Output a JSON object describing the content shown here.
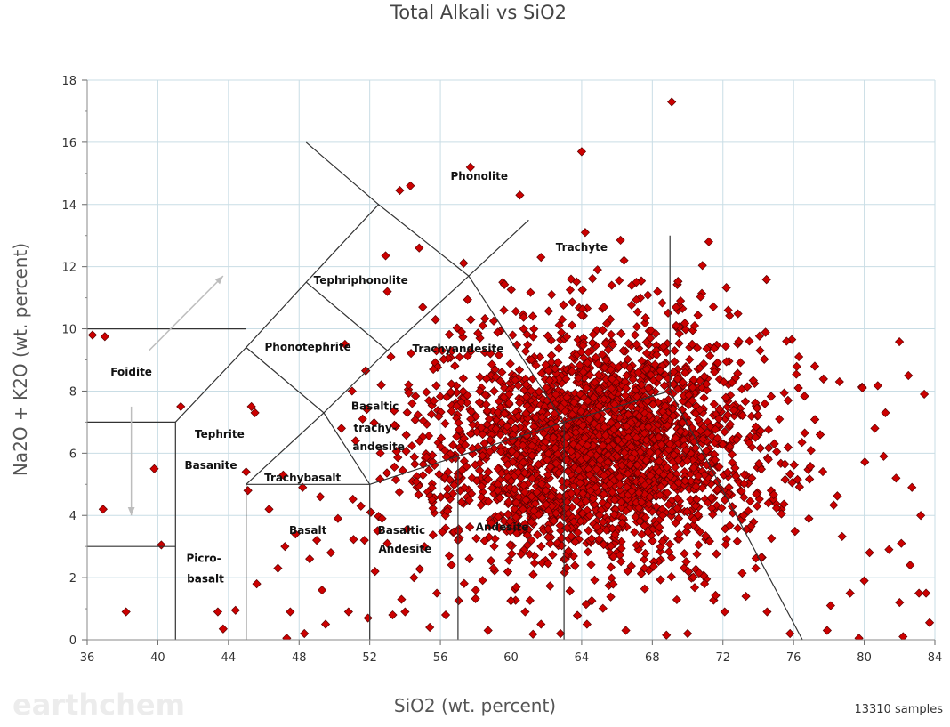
{
  "watermark": "earthchem",
  "sample_count": "13310 samples",
  "colors": {
    "point_fill": "#cc0000",
    "point_stroke": "#5a0000",
    "grid": "#c9dde5",
    "boundary": "#333333",
    "arrow": "#bdbdbd"
  },
  "chart_data": {
    "type": "scatter",
    "title": "Total Alkali vs SiO2",
    "xlabel": "SiO2 (wt. percent)",
    "ylabel": "Na2O + K2O (wt. percent)",
    "xlim": [
      36,
      84
    ],
    "ylim": [
      0,
      18
    ],
    "xticks": [
      36,
      40,
      44,
      48,
      52,
      56,
      60,
      64,
      68,
      72,
      76,
      80,
      84
    ],
    "yticks": [
      0,
      2,
      4,
      6,
      8,
      10,
      12,
      14,
      16,
      18
    ],
    "grid": true,
    "legend": "none",
    "regions": [
      {
        "label": "Foidite",
        "x": 38.5,
        "y": 8.5
      },
      {
        "label": "Phonolite",
        "x": 58.2,
        "y": 14.8
      },
      {
        "label": "Tephriphonolite",
        "x": 51.5,
        "y": 11.45
      },
      {
        "label": "Trachyte",
        "x": 64.0,
        "y": 12.5
      },
      {
        "label": "Phonotephrite",
        "x": 48.5,
        "y": 9.3
      },
      {
        "label": "Trachyandesite",
        "x": 57.0,
        "y": 9.25
      },
      {
        "label": "Basaltic",
        "x": 52.3,
        "y": 7.4
      },
      {
        "label": "trachy-",
        "x": 52.3,
        "y": 6.7
      },
      {
        "label": "andesite",
        "x": 52.5,
        "y": 6.1
      },
      {
        "label": "Tephrite",
        "x": 43.5,
        "y": 6.5
      },
      {
        "label": "Basanite",
        "x": 43.0,
        "y": 5.5
      },
      {
        "label": "Trachybasalt",
        "x": 48.2,
        "y": 5.1
      },
      {
        "label": "Basalt",
        "x": 48.5,
        "y": 3.4
      },
      {
        "label": "Basaltic",
        "x": 53.8,
        "y": 3.4
      },
      {
        "label": "Andesite",
        "x": 54.0,
        "y": 2.8
      },
      {
        "label": "Andesite",
        "x": 59.5,
        "y": 3.5
      },
      {
        "label": "Picro-",
        "x": 42.6,
        "y": 2.5
      },
      {
        "label": "basalt",
        "x": 42.7,
        "y": 1.85
      }
    ],
    "boundaries": [
      [
        [
          41,
          0
        ],
        [
          41,
          7
        ],
        [
          45,
          9.4
        ],
        [
          48.4,
          11.5
        ],
        [
          52.5,
          14
        ],
        [
          57.6,
          11.7
        ],
        [
          63,
          7
        ],
        [
          69,
          8
        ],
        [
          76.5,
          0
        ]
      ],
      [
        [
          45,
          0
        ],
        [
          45,
          5
        ],
        [
          52,
          5
        ]
      ],
      [
        [
          52,
          0
        ],
        [
          52,
          5
        ]
      ],
      [
        [
          57,
          0
        ],
        [
          57,
          5.9
        ]
      ],
      [
        [
          63,
          0
        ],
        [
          63,
          7
        ]
      ],
      [
        [
          45,
          5
        ],
        [
          49.4,
          7.3
        ],
        [
          53,
          9.3
        ],
        [
          57.6,
          11.7
        ],
        [
          61,
          13.5
        ]
      ],
      [
        [
          45,
          9.4
        ],
        [
          49.4,
          7.3
        ],
        [
          52,
          5
        ],
        [
          57,
          5.9
        ],
        [
          63,
          7
        ]
      ],
      [
        [
          48.4,
          11.5
        ],
        [
          53,
          9.3
        ]
      ],
      [
        [
          52.5,
          14
        ],
        [
          48.4,
          16
        ]
      ],
      [
        [
          69,
          8
        ],
        [
          69,
          13
        ]
      ],
      [
        [
          36,
          10
        ],
        [
          45,
          10
        ]
      ],
      [
        [
          36,
          7
        ],
        [
          41,
          7
        ]
      ],
      [
        [
          36,
          3
        ],
        [
          41,
          3
        ]
      ]
    ],
    "arrows": [
      {
        "from": [
          39.5,
          9.3
        ],
        "to": [
          43.7,
          11.7
        ]
      },
      {
        "from": [
          38.5,
          7.5
        ],
        "to": [
          38.5,
          4.0
        ]
      }
    ],
    "points_sparse": [
      [
        36.3,
        9.8
      ],
      [
        37.0,
        9.75
      ],
      [
        38.2,
        0.9
      ],
      [
        36.9,
        4.2
      ],
      [
        39.8,
        5.5
      ],
      [
        40.2,
        3.05
      ],
      [
        41.3,
        7.5
      ],
      [
        43.4,
        0.9
      ],
      [
        43.7,
        0.35
      ],
      [
        44.4,
        0.95
      ],
      [
        45.3,
        7.5
      ],
      [
        45.5,
        7.3
      ],
      [
        45.0,
        5.4
      ],
      [
        45.1,
        4.8
      ],
      [
        45.6,
        1.8
      ],
      [
        46.3,
        4.2
      ],
      [
        46.8,
        2.3
      ],
      [
        47.2,
        3.0
      ],
      [
        47.8,
        3.4
      ],
      [
        47.5,
        0.9
      ],
      [
        47.3,
        0.05
      ],
      [
        48.3,
        0.2
      ],
      [
        48.6,
        2.6
      ],
      [
        49.0,
        3.2
      ],
      [
        49.3,
        1.6
      ],
      [
        49.8,
        2.8
      ],
      [
        50.2,
        3.9
      ],
      [
        50.6,
        9.5
      ],
      [
        51.0,
        8.0
      ],
      [
        51.2,
        6.4
      ],
      [
        51.5,
        4.3
      ],
      [
        51.7,
        3.2
      ],
      [
        51.9,
        0.7
      ],
      [
        52.3,
        2.2
      ],
      [
        52.7,
        3.9
      ],
      [
        53.0,
        3.1
      ],
      [
        53.3,
        0.8
      ],
      [
        52.9,
        12.35
      ],
      [
        53.0,
        11.2
      ],
      [
        53.2,
        9.1
      ],
      [
        53.7,
        14.45
      ],
      [
        54.3,
        14.6
      ],
      [
        54.8,
        12.6
      ],
      [
        55.0,
        10.7
      ],
      [
        57.7,
        15.2
      ],
      [
        60.5,
        14.3
      ],
      [
        61.7,
        12.3
      ],
      [
        64.0,
        15.7
      ],
      [
        64.2,
        13.1
      ],
      [
        69.1,
        17.3
      ],
      [
        66.2,
        12.85
      ],
      [
        66.4,
        12.2
      ],
      [
        71.2,
        12.8
      ],
      [
        75.6,
        9.6
      ],
      [
        78.6,
        8.3
      ],
      [
        81.2,
        7.3
      ],
      [
        82.5,
        8.5
      ],
      [
        83.4,
        7.9
      ],
      [
        83.2,
        4.0
      ],
      [
        83.5,
        1.5
      ],
      [
        83.7,
        0.55
      ],
      [
        82.2,
        0.1
      ],
      [
        79.7,
        0.05
      ],
      [
        77.9,
        0.3
      ],
      [
        75.8,
        0.2
      ],
      [
        56.3,
        0.8
      ],
      [
        55.4,
        0.4
      ],
      [
        54.0,
        0.9
      ],
      [
        58.7,
        0.3
      ],
      [
        60.8,
        0.9
      ],
      [
        61.7,
        0.5
      ],
      [
        62.8,
        0.2
      ],
      [
        64.3,
        0.5
      ],
      [
        66.5,
        0.3
      ],
      [
        68.8,
        0.15
      ],
      [
        70.0,
        0.2
      ],
      [
        72.1,
        0.9
      ],
      [
        73.3,
        1.4
      ],
      [
        74.5,
        0.9
      ],
      [
        57.2,
        9.9
      ],
      [
        58.4,
        10.1
      ],
      [
        59.6,
        10.6
      ],
      [
        60.1,
        9.8
      ],
      [
        62.3,
        11.1
      ],
      [
        62.9,
        10.3
      ],
      [
        63.4,
        11.6
      ],
      [
        64.9,
        11.9
      ],
      [
        65.7,
        11.4
      ],
      [
        67.1,
        11.5
      ],
      [
        68.3,
        11.2
      ],
      [
        69.6,
        10.9
      ],
      [
        70.4,
        10.1
      ],
      [
        72.3,
        10.6
      ],
      [
        72.9,
        9.6
      ],
      [
        74.1,
        9.3
      ],
      [
        76.3,
        9.1
      ],
      [
        77.2,
        8.8
      ],
      [
        79.9,
        8.1
      ],
      [
        80.6,
        6.8
      ],
      [
        81.1,
        5.9
      ],
      [
        81.8,
        5.2
      ],
      [
        82.7,
        4.9
      ],
      [
        82.1,
        3.1
      ],
      [
        81.4,
        2.9
      ],
      [
        80.3,
        2.8
      ],
      [
        80.0,
        1.9
      ],
      [
        79.2,
        1.5
      ],
      [
        78.1,
        1.1
      ],
      [
        82.6,
        2.4
      ],
      [
        83.1,
        1.5
      ],
      [
        82.0,
        1.2
      ],
      [
        57.0,
        3.2
      ],
      [
        58.0,
        1.6
      ],
      [
        59.0,
        2.3
      ],
      [
        60.3,
        1.7
      ],
      [
        56.5,
        2.7
      ],
      [
        55.8,
        1.5
      ],
      [
        55.1,
        3.0
      ],
      [
        54.5,
        2.0
      ],
      [
        53.8,
        1.3
      ],
      [
        50.8,
        0.9
      ],
      [
        49.5,
        0.5
      ],
      [
        47.1,
        5.3
      ],
      [
        48.2,
        4.9
      ],
      [
        49.2,
        4.6
      ],
      [
        50.4,
        6.8
      ],
      [
        51.6,
        7.1
      ],
      [
        52.6,
        6.0
      ],
      [
        53.4,
        6.9
      ],
      [
        54.4,
        7.6
      ],
      [
        55.6,
        8.7
      ],
      [
        56.1,
        9.3
      ],
      [
        54.2,
        8.2
      ]
    ],
    "points_dense_summary": "Dense cluster of ~13,000 samples centered near SiO2 64–68, Na2O+K2O 6–7, spanning roughly SiO2 52–82 and Na2O+K2O 0–12"
  }
}
